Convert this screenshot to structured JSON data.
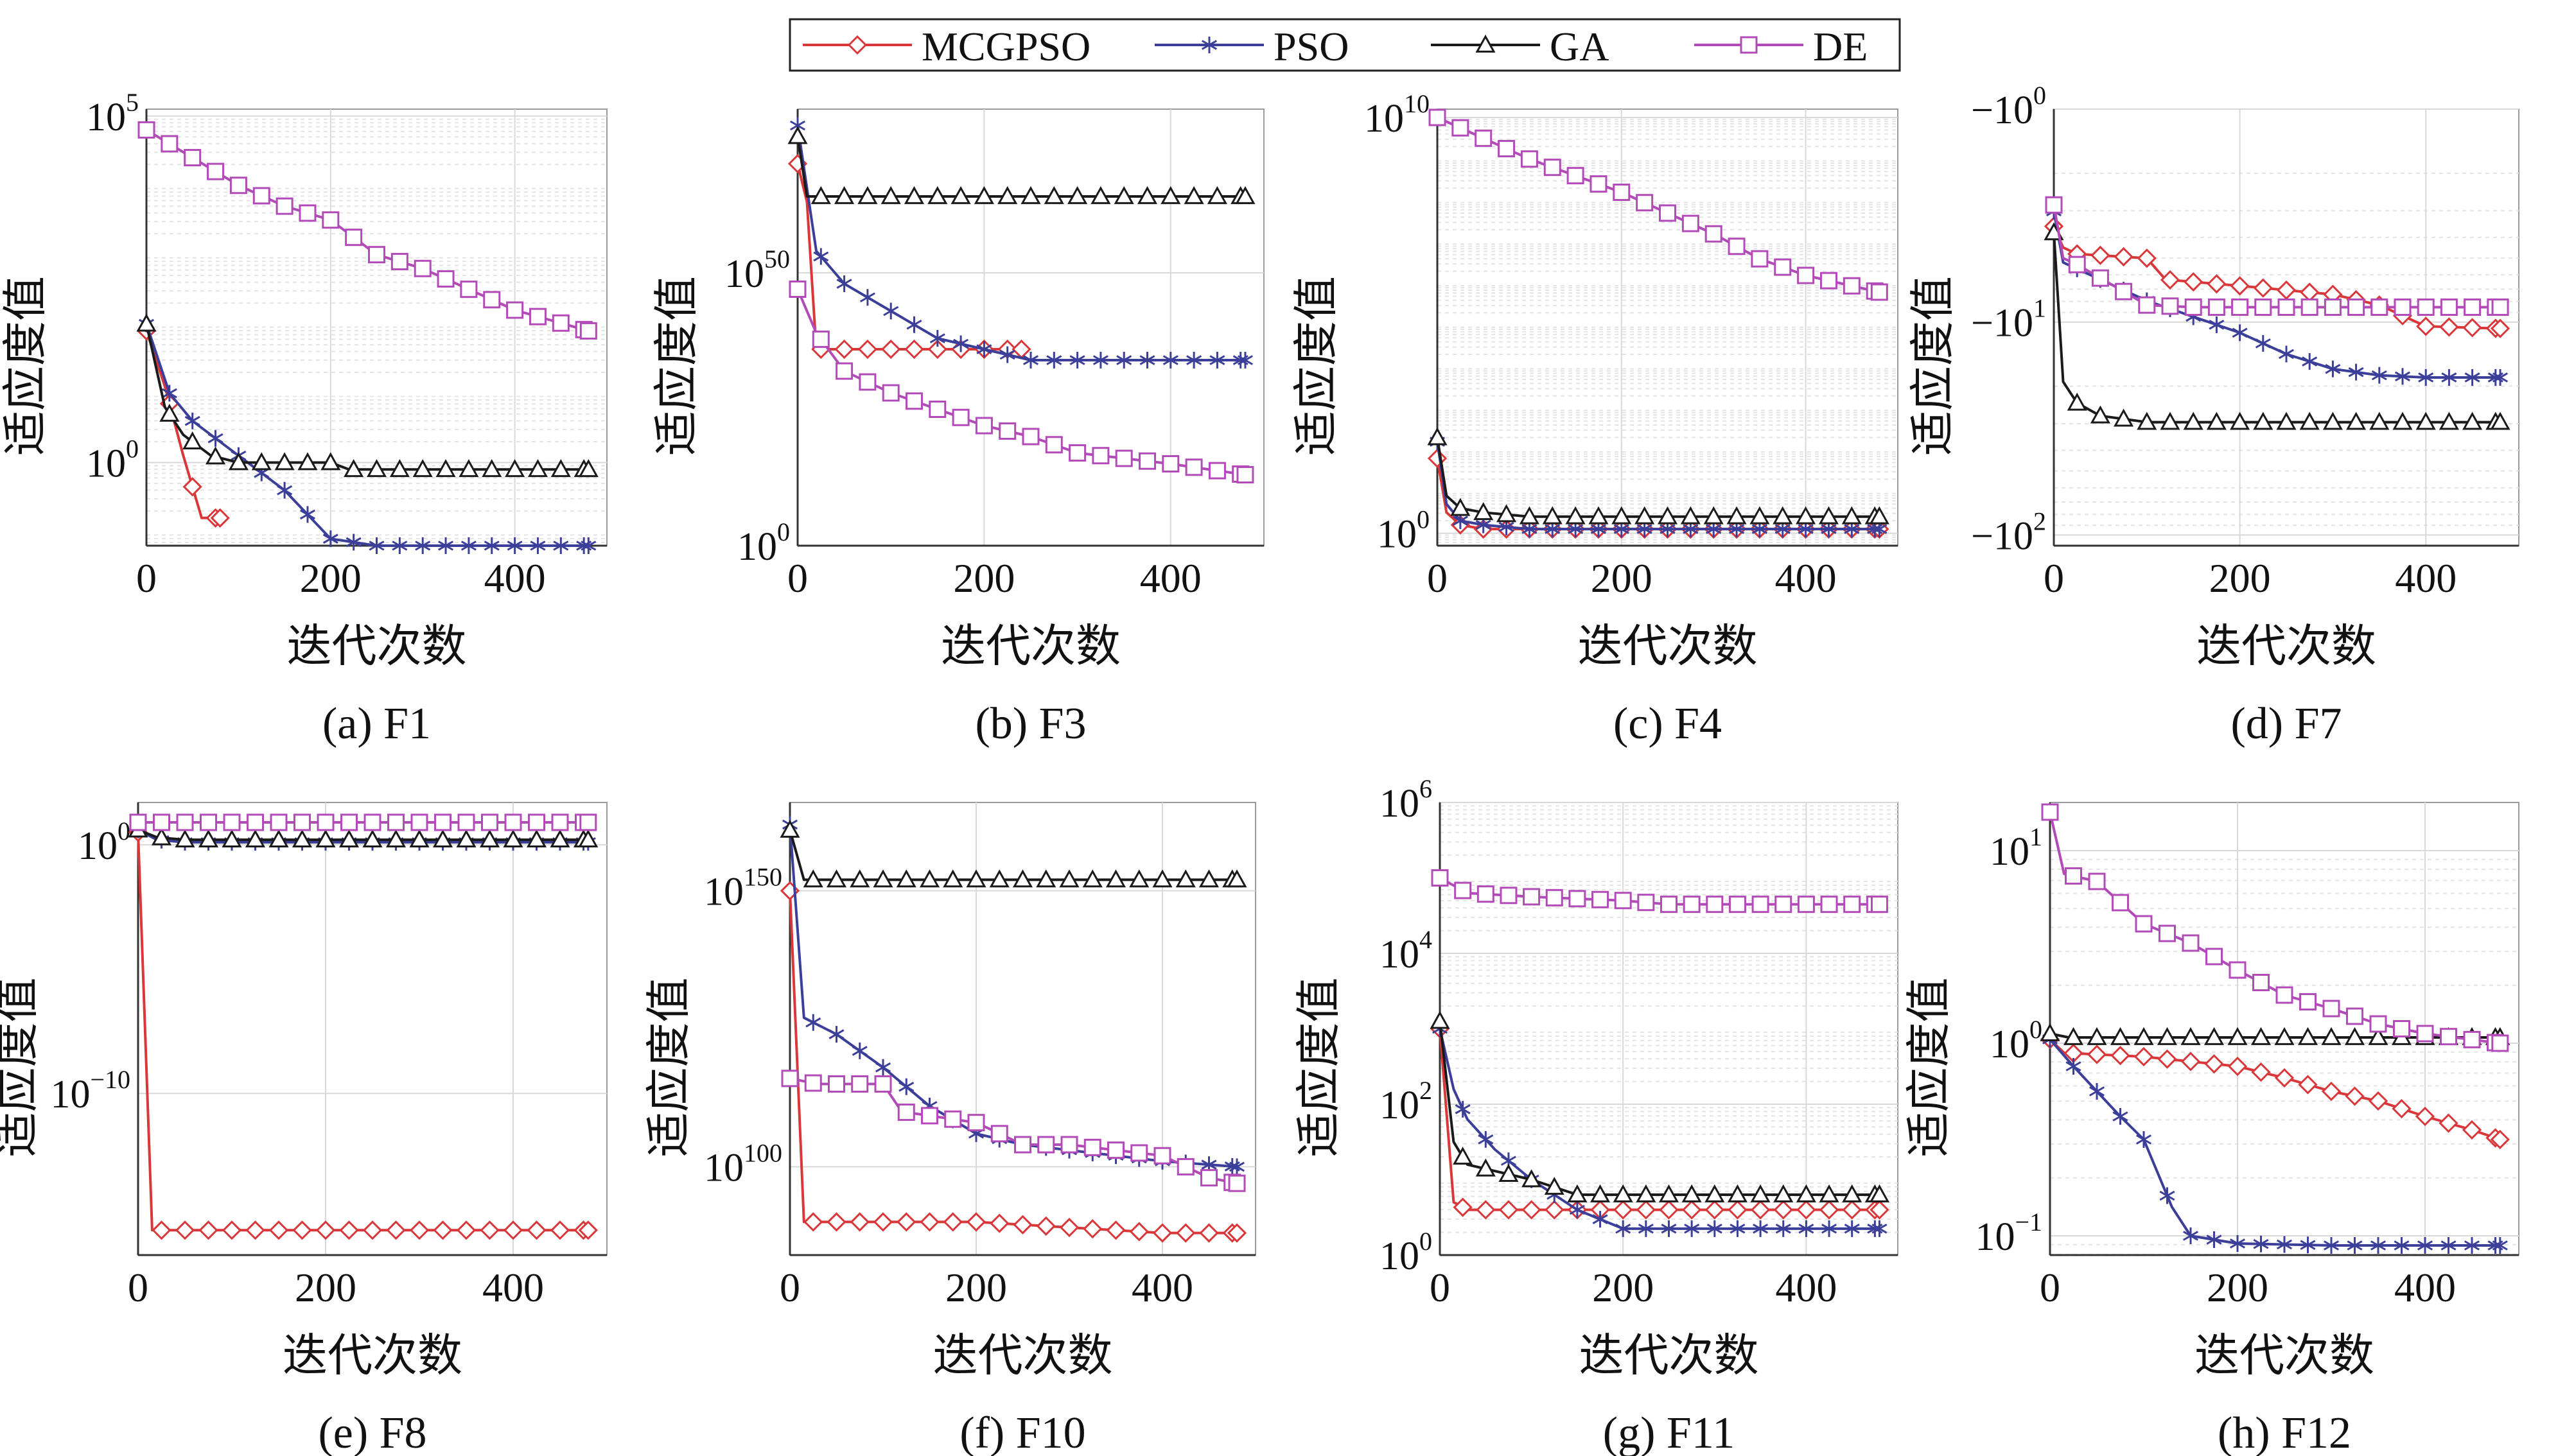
{
  "legend": {
    "items": [
      {
        "name": "MCGPSO",
        "color": "#d9373a",
        "marker": "diamond"
      },
      {
        "name": "PSO",
        "color": "#3b3f9a",
        "marker": "star"
      },
      {
        "name": "GA",
        "color": "#1a1a1a",
        "marker": "triangle"
      },
      {
        "name": "DE",
        "color": "#b24bb8",
        "marker": "square"
      }
    ]
  },
  "chart_data": [
    {
      "type": "line",
      "subtitle": "(a) F1",
      "xlabel": "迭代次数",
      "ylabel": "适应度值",
      "yscale": "log",
      "xlim": [
        0,
        500
      ],
      "ylim_log10": [
        -1.2,
        5.1
      ],
      "xticks": [
        0,
        200,
        400
      ],
      "yticks": [
        {
          "text": "10",
          "sup": "5",
          "value_log10": 5
        },
        {
          "text": "10",
          "sup": "0",
          "value_log10": 0
        }
      ],
      "series": [
        {
          "name": "MCGPSO",
          "x": [
            0,
            20,
            40,
            60,
            80
          ],
          "y_log10": [
            1.9,
            1.1,
            0.1,
            -0.8,
            -0.8
          ]
        },
        {
          "name": "PSO",
          "x": [
            0,
            25,
            50,
            100,
            150,
            200,
            250,
            300,
            400,
            480
          ],
          "y_log10": [
            2.0,
            1.0,
            0.6,
            0.1,
            -0.4,
            -1.1,
            -1.2,
            -1.2,
            -1.2,
            -1.2
          ]
        },
        {
          "name": "GA",
          "x": [
            0,
            20,
            40,
            70,
            100,
            200,
            220,
            300,
            400,
            480
          ],
          "y_log10": [
            2.0,
            0.8,
            0.4,
            0.1,
            0.0,
            0.0,
            -0.1,
            -0.1,
            -0.1,
            -0.1
          ]
        },
        {
          "name": "DE",
          "x": [
            0,
            50,
            100,
            150,
            200,
            250,
            300,
            350,
            400,
            480
          ],
          "y_log10": [
            4.8,
            4.4,
            4.0,
            3.7,
            3.5,
            3.0,
            2.8,
            2.5,
            2.2,
            1.9
          ]
        }
      ]
    },
    {
      "type": "line",
      "subtitle": "(b) F3",
      "xlabel": "迭代次数",
      "ylabel": "适应度值",
      "yscale": "log",
      "xlim": [
        0,
        500
      ],
      "ylim_log10": [
        0,
        80
      ],
      "xticks": [
        0,
        200,
        400
      ],
      "yticks": [
        {
          "text": "10",
          "sup": "50",
          "value_log10": 50
        },
        {
          "text": "10",
          "sup": "0",
          "value_log10": 0
        }
      ],
      "series": [
        {
          "name": "MCGPSO",
          "x": [
            0,
            10,
            20,
            50,
            100,
            150,
            200,
            240
          ],
          "y_log10": [
            70,
            63,
            36,
            36,
            36,
            36,
            36,
            36
          ]
        },
        {
          "name": "PSO",
          "x": [
            0,
            20,
            50,
            100,
            150,
            200,
            250,
            300,
            400,
            480
          ],
          "y_log10": [
            77,
            54,
            48,
            43,
            38,
            36,
            34,
            34,
            34,
            34
          ]
        },
        {
          "name": "GA",
          "x": [
            0,
            10,
            20,
            100,
            200,
            300,
            400,
            480
          ],
          "y_log10": [
            75,
            64,
            64,
            64,
            64,
            64,
            64,
            64
          ]
        },
        {
          "name": "DE",
          "x": [
            0,
            20,
            50,
            100,
            150,
            200,
            250,
            300,
            400,
            480
          ],
          "y_log10": [
            47,
            39,
            32,
            28,
            25,
            22,
            20,
            17,
            15,
            13
          ]
        }
      ]
    },
    {
      "type": "line",
      "subtitle": "(c) F4",
      "xlabel": "迭代次数",
      "ylabel": "适应度值",
      "yscale": "log",
      "xlim": [
        0,
        500
      ],
      "ylim_log10": [
        -0.3,
        10.2
      ],
      "xticks": [
        0,
        200,
        400
      ],
      "yticks": [
        {
          "text": "10",
          "sup": "10",
          "value_log10": 10
        },
        {
          "text": "10",
          "sup": "0",
          "value_log10": 0
        }
      ],
      "series": [
        {
          "name": "MCGPSO",
          "x": [
            0,
            10,
            25,
            50,
            100,
            200,
            300,
            400,
            480
          ],
          "y_log10": [
            1.8,
            0.5,
            0.2,
            0.1,
            0.1,
            0.1,
            0.1,
            0.1,
            0.1
          ]
        },
        {
          "name": "PSO",
          "x": [
            0,
            10,
            25,
            50,
            100,
            200,
            300,
            400,
            480
          ],
          "y_log10": [
            2.2,
            0.7,
            0.3,
            0.2,
            0.1,
            0.1,
            0.1,
            0.1,
            0.1
          ]
        },
        {
          "name": "GA",
          "x": [
            0,
            10,
            25,
            50,
            100,
            200,
            300,
            400,
            480
          ],
          "y_log10": [
            2.3,
            0.9,
            0.6,
            0.5,
            0.4,
            0.4,
            0.4,
            0.4,
            0.4
          ]
        },
        {
          "name": "DE",
          "x": [
            0,
            50,
            100,
            150,
            200,
            250,
            300,
            350,
            400,
            480
          ],
          "y_log10": [
            10.0,
            9.5,
            9.0,
            8.6,
            8.2,
            7.7,
            7.2,
            6.6,
            6.2,
            5.8
          ]
        }
      ]
    },
    {
      "type": "line",
      "subtitle": "(d) F7",
      "xlabel": "迭代次数",
      "ylabel": "适应度值",
      "yscale": "log-negative",
      "xlim": [
        0,
        500
      ],
      "ylim_log10_abs": [
        0,
        2.05
      ],
      "xticks": [
        0,
        200,
        400
      ],
      "yticks": [
        {
          "text": "−10",
          "sup": "0",
          "value_log10": 0
        },
        {
          "text": "−10",
          "sup": "1",
          "value_log10": 1
        },
        {
          "text": "−10",
          "sup": "2",
          "value_log10": 2
        }
      ],
      "series": [
        {
          "name": "MCGPSO",
          "x": [
            0,
            10,
            25,
            100,
            120,
            200,
            300,
            350,
            400,
            480
          ],
          "y_log10_abs": [
            0.55,
            0.65,
            0.68,
            0.7,
            0.8,
            0.83,
            0.87,
            0.92,
            1.02,
            1.03
          ]
        },
        {
          "name": "PSO",
          "x": [
            0,
            10,
            25,
            50,
            100,
            200,
            250,
            300,
            350,
            400,
            480
          ],
          "y_log10_abs": [
            0.48,
            0.72,
            0.75,
            0.8,
            0.9,
            1.05,
            1.15,
            1.22,
            1.25,
            1.26,
            1.26
          ]
        },
        {
          "name": "GA",
          "x": [
            0,
            10,
            25,
            50,
            100,
            200,
            300,
            400,
            480
          ],
          "y_log10_abs": [
            0.58,
            1.28,
            1.38,
            1.44,
            1.47,
            1.47,
            1.47,
            1.47,
            1.47
          ]
        },
        {
          "name": "DE",
          "x": [
            0,
            10,
            25,
            100,
            150,
            200,
            300,
            400,
            480
          ],
          "y_log10_abs": [
            0.45,
            0.7,
            0.73,
            0.92,
            0.93,
            0.93,
            0.93,
            0.93,
            0.93
          ]
        }
      ]
    },
    {
      "type": "line",
      "subtitle": "(e) F8",
      "xlabel": "迭代次数",
      "ylabel": "适应度值",
      "yscale": "log",
      "xlim": [
        0,
        500
      ],
      "ylim_log10": [
        -16.5,
        1.7
      ],
      "xticks": [
        0,
        200,
        400
      ],
      "yticks": [
        {
          "text": "10",
          "sup": "0",
          "value_log10": 0
        },
        {
          "text": "10",
          "sup": "−10",
          "value_log10": -10
        }
      ],
      "series": [
        {
          "name": "MCGPSO",
          "x": [
            0,
            15,
            100,
            200,
            300,
            400,
            480
          ],
          "y_log10": [
            0.5,
            -15.5,
            -15.5,
            -15.5,
            -15.5,
            -15.5,
            -15.5
          ]
        },
        {
          "name": "PSO",
          "x": [
            0,
            20,
            50,
            100,
            200,
            300,
            400,
            480
          ],
          "y_log10": [
            0.6,
            0.2,
            0.1,
            0.1,
            0.1,
            0.1,
            0.1,
            0.1
          ]
        },
        {
          "name": "GA",
          "x": [
            0,
            20,
            50,
            100,
            200,
            300,
            400,
            480
          ],
          "y_log10": [
            0.6,
            0.3,
            0.2,
            0.2,
            0.2,
            0.2,
            0.2,
            0.2
          ]
        },
        {
          "name": "DE",
          "x": [
            0,
            20,
            50,
            100,
            200,
            300,
            400,
            480
          ],
          "y_log10": [
            0.9,
            0.9,
            0.9,
            0.9,
            0.9,
            0.9,
            0.9,
            0.9
          ]
        }
      ]
    },
    {
      "type": "line",
      "subtitle": "(f) F10",
      "xlabel": "迭代次数",
      "ylabel": "适应度值",
      "yscale": "log",
      "xlim": [
        0,
        500
      ],
      "ylim_log10": [
        84,
        166
      ],
      "xticks": [
        0,
        200,
        400
      ],
      "yticks": [
        {
          "text": "10",
          "sup": "150",
          "value_log10": 150
        },
        {
          "text": "10",
          "sup": "100",
          "value_log10": 100
        }
      ],
      "series": [
        {
          "name": "MCGPSO",
          "x": [
            0,
            15,
            50,
            100,
            200,
            300,
            400,
            480
          ],
          "y_log10": [
            150,
            90,
            90,
            90,
            90,
            89,
            88,
            88
          ]
        },
        {
          "name": "PSO",
          "x": [
            0,
            15,
            50,
            100,
            150,
            200,
            250,
            300,
            400,
            480
          ],
          "y_log10": [
            162,
            127,
            124,
            118,
            111,
            106,
            104,
            103,
            101,
            100
          ]
        },
        {
          "name": "GA",
          "x": [
            0,
            15,
            50,
            100,
            200,
            300,
            400,
            480
          ],
          "y_log10": [
            161,
            152,
            152,
            152,
            152,
            152,
            152,
            152
          ]
        },
        {
          "name": "DE",
          "x": [
            0,
            30,
            100,
            120,
            200,
            250,
            300,
            400,
            450,
            480
          ],
          "y_log10": [
            116,
            115,
            115,
            110,
            108,
            104,
            104,
            102,
            98,
            97
          ]
        }
      ]
    },
    {
      "type": "line",
      "subtitle": "(g) F11",
      "xlabel": "迭代次数",
      "ylabel": "适应度值",
      "yscale": "log",
      "xlim": [
        0,
        500
      ],
      "ylim_log10": [
        0,
        6
      ],
      "xticks": [
        0,
        200,
        400
      ],
      "yticks": [
        {
          "text": "10",
          "sup": "6",
          "value_log10": 6
        },
        {
          "text": "10",
          "sup": "4",
          "value_log10": 4
        },
        {
          "text": "10",
          "sup": "2",
          "value_log10": 2
        },
        {
          "text": "10",
          "sup": "0",
          "value_log10": 0
        }
      ],
      "series": [
        {
          "name": "MCGPSO",
          "x": [
            0,
            15,
            30,
            100,
            200,
            300,
            400,
            480
          ],
          "y_log10": [
            3.0,
            0.7,
            0.6,
            0.6,
            0.6,
            0.6,
            0.6,
            0.6
          ]
        },
        {
          "name": "PSO",
          "x": [
            0,
            15,
            30,
            60,
            100,
            150,
            200,
            300,
            400,
            480
          ],
          "y_log10": [
            3.0,
            2.2,
            1.8,
            1.4,
            1.0,
            0.6,
            0.35,
            0.35,
            0.35,
            0.35
          ]
        },
        {
          "name": "GA",
          "x": [
            0,
            15,
            30,
            100,
            150,
            200,
            300,
            400,
            480
          ],
          "y_log10": [
            3.1,
            1.5,
            1.2,
            1.0,
            0.8,
            0.8,
            0.8,
            0.8,
            0.8
          ]
        },
        {
          "name": "DE",
          "x": [
            0,
            30,
            100,
            200,
            250,
            300,
            400,
            480
          ],
          "y_log10": [
            5.0,
            4.8,
            4.75,
            4.7,
            4.65,
            4.65,
            4.65,
            4.65
          ]
        }
      ]
    },
    {
      "type": "line",
      "subtitle": "(h) F12",
      "xlabel": "迭代次数",
      "ylabel": "适应度值",
      "yscale": "log",
      "xlim": [
        0,
        500
      ],
      "ylim_log10": [
        -1.1,
        1.25
      ],
      "xticks": [
        0,
        200,
        400
      ],
      "yticks": [
        {
          "text": "10",
          "sup": "1",
          "value_log10": 1
        },
        {
          "text": "10",
          "sup": "0",
          "value_log10": 0
        },
        {
          "text": "10",
          "sup": "−1",
          "value_log10": -1
        }
      ],
      "series": [
        {
          "name": "MCGPSO",
          "x": [
            0,
            15,
            100,
            200,
            250,
            300,
            350,
            400,
            450,
            480
          ],
          "y_log10": [
            0.02,
            -0.05,
            -0.07,
            -0.12,
            -0.18,
            -0.25,
            -0.3,
            -0.38,
            -0.45,
            -0.5
          ]
        },
        {
          "name": "PSO",
          "x": [
            0,
            25,
            50,
            75,
            100,
            130,
            150,
            200,
            300,
            400,
            480
          ],
          "y_log10": [
            0.02,
            -0.12,
            -0.25,
            -0.38,
            -0.5,
            -0.85,
            -1.0,
            -1.04,
            -1.05,
            -1.05,
            -1.05
          ]
        },
        {
          "name": "GA",
          "x": [
            0,
            20,
            100,
            200,
            300,
            400,
            480
          ],
          "y_log10": [
            0.05,
            0.03,
            0.03,
            0.03,
            0.03,
            0.03,
            0.03
          ]
        },
        {
          "name": "DE",
          "x": [
            0,
            15,
            50,
            100,
            150,
            200,
            250,
            300,
            350,
            400,
            480
          ],
          "y_log10": [
            1.2,
            0.88,
            0.84,
            0.62,
            0.52,
            0.38,
            0.25,
            0.18,
            0.1,
            0.05,
            0.0
          ]
        }
      ]
    }
  ]
}
